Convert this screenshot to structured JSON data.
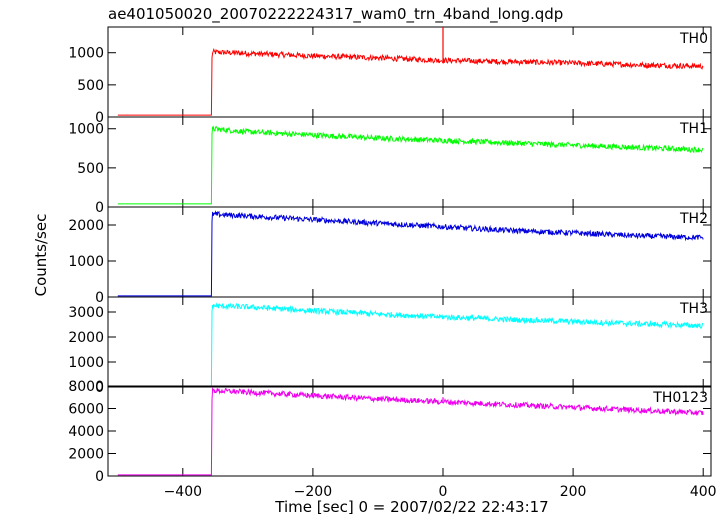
{
  "chart_data": {
    "type": "line",
    "title": "ae401050020_20070222224317_wam0_trn_4band_long.qdp",
    "xlabel": "Time [sec] 0 = 2007/02/22 22:43:17",
    "ylabel": "Counts/sec",
    "xlim": [
      -515,
      412
    ],
    "xticks": [
      -400,
      -200,
      0,
      200,
      400
    ],
    "xtick_labels": [
      "−400",
      "−200",
      "0",
      "200",
      "400"
    ],
    "grid": false,
    "panels": [
      {
        "name": "TH0",
        "color": "#ff0000",
        "ylim": [
          0,
          1400
        ],
        "yticks": [
          0,
          500,
          1000
        ],
        "yticklabels": [
          "0",
          "500",
          "1000"
        ],
        "x": [
          -500,
          -356,
          -355,
          -300,
          -200,
          -100,
          0,
          100,
          200,
          300,
          400
        ],
        "y": [
          30,
          30,
          1010,
          990,
          950,
          920,
          880,
          860,
          840,
          810,
          790
        ],
        "spike": {
          "x": 0,
          "y": 1400
        }
      },
      {
        "name": "TH1",
        "color": "#00ff00",
        "ylim": [
          0,
          1150
        ],
        "yticks": [
          0,
          500,
          1000
        ],
        "yticklabels": [
          "0",
          "500",
          "1000"
        ],
        "x": [
          -500,
          -356,
          -355,
          -300,
          -200,
          -100,
          0,
          100,
          200,
          300,
          400
        ],
        "y": [
          40,
          40,
          1000,
          960,
          920,
          880,
          850,
          820,
          790,
          760,
          730
        ]
      },
      {
        "name": "TH2",
        "color": "#0000dd",
        "ylim": [
          0,
          2500
        ],
        "yticks": [
          0,
          1000,
          2000
        ],
        "yticklabels": [
          "0",
          "1000",
          "2000"
        ],
        "x": [
          -500,
          -356,
          -355,
          -300,
          -200,
          -100,
          0,
          100,
          200,
          300,
          400
        ],
        "y": [
          30,
          30,
          2300,
          2250,
          2150,
          2050,
          1950,
          1850,
          1780,
          1700,
          1650
        ]
      },
      {
        "name": "TH3",
        "color": "#00ffff",
        "ylim": [
          0,
          3600
        ],
        "yticks": [
          0,
          1000,
          2000,
          3000
        ],
        "yticklabels": [
          "0",
          "1000",
          "2000",
          "3000"
        ],
        "x": [
          -500,
          -356,
          -355,
          -300,
          -200,
          -100,
          0,
          100,
          200,
          300,
          400
        ],
        "y": [
          40,
          40,
          3250,
          3200,
          3050,
          2920,
          2800,
          2700,
          2620,
          2530,
          2450
        ]
      },
      {
        "name": "TH0123",
        "color": "#ee00ee",
        "ylim": [
          0,
          8000
        ],
        "yticks": [
          0,
          2000,
          4000,
          6000,
          8000
        ],
        "yticklabels": [
          "0",
          "2000",
          "4000",
          "6000",
          "8000"
        ],
        "x": [
          -500,
          -356,
          -355,
          -300,
          -200,
          -100,
          0,
          100,
          200,
          300,
          400
        ],
        "y": [
          100,
          100,
          7600,
          7450,
          7150,
          6850,
          6600,
          6350,
          6100,
          5850,
          5600
        ],
        "spike": {
          "x": 0,
          "y": 7000
        }
      }
    ]
  }
}
